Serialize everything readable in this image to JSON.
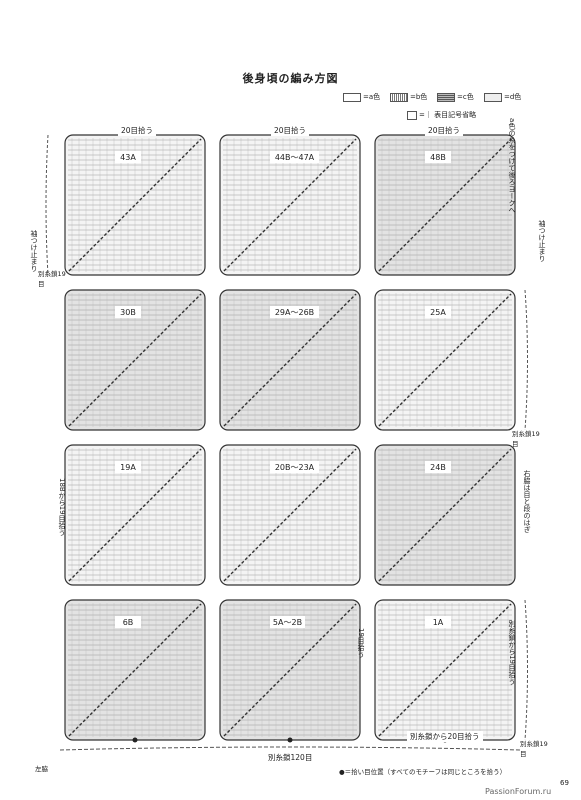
{
  "title": "後身頃の編み方図",
  "legend": [
    {
      "swatch": "a",
      "label": "=a色"
    },
    {
      "swatch": "b",
      "label": "=b色"
    },
    {
      "swatch": "c",
      "label": "=c色"
    },
    {
      "swatch": "d",
      "label": "=d色"
    }
  ],
  "omit_note": "=｜ 表目記号省略",
  "pickup_top": "20目拾う",
  "motifs": [
    [
      "43A",
      "44B〜47A",
      "48B"
    ],
    [
      "30B",
      "29A〜26B",
      "25A"
    ],
    [
      "19A",
      "20B〜23A",
      "24B"
    ],
    [
      "6B",
      "5A〜2B",
      "1A"
    ]
  ],
  "left_labels": {
    "sleeve_stop": "袖つけ止まり",
    "chain_19": "別糸鎖19目",
    "pick_18b": "18Bから19目拾う",
    "left_side": "左脇"
  },
  "right_labels": {
    "yoke_note": "a色の糸をつけて後ろヨークへ",
    "sleeve_stop": "袖つけ止まり",
    "chain_19": "別糸鎖19目",
    "seam_note": "右脇は目と段のはぎ",
    "chain_pick": "別糸鎖から19目拾う"
  },
  "inner_labels": {
    "pick_19": "19目拾う",
    "bottom_pick": "別糸鎖から20目拾う"
  },
  "bottom": {
    "chain_120": "別糸鎖120目",
    "pickup_note": "●＝拾い目位置（すべてのモチーフは同じところを拾う）"
  },
  "page_number": "69",
  "watermark": "PassionForum.ru"
}
